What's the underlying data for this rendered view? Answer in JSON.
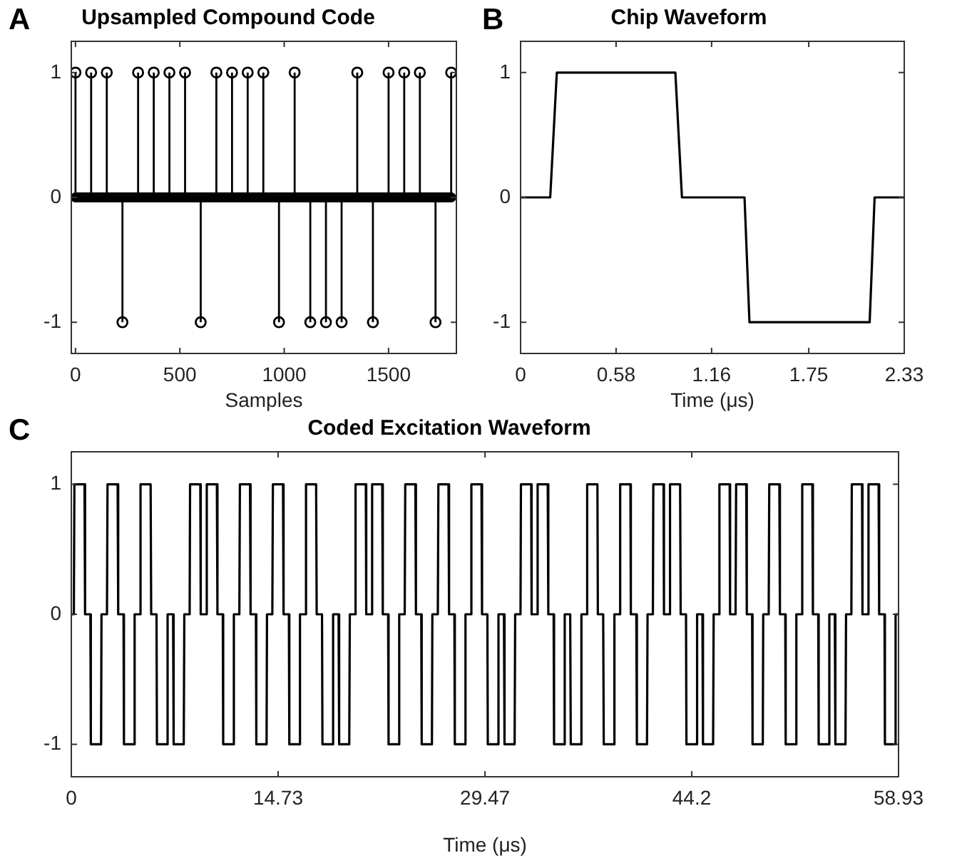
{
  "chart_data": [
    {
      "type": "lollipop",
      "title": "Upsampled Compound Code",
      "xlabel": "Samples",
      "annotations": [
        "A"
      ],
      "xlim": [
        -20,
        1825
      ],
      "ylim": [
        -1.25,
        1.25
      ],
      "xticks": [
        0,
        500,
        1000,
        1500
      ],
      "yticks": [
        -1,
        0,
        1
      ],
      "series": [
        {
          "type": "lollipop",
          "marker": "circle",
          "color": "#000000",
          "x": [
            0,
            75,
            150,
            225,
            300,
            375,
            450,
            525,
            600,
            675,
            750,
            825,
            900,
            975,
            1050,
            1125,
            1200,
            1275,
            1350,
            1425,
            1500,
            1575,
            1650,
            1725,
            1800
          ],
          "values": [
            1,
            1,
            1,
            -1,
            1,
            1,
            1,
            1,
            -1,
            1,
            1,
            1,
            1,
            -1,
            1,
            -1,
            -1,
            -1,
            1,
            -1,
            1,
            1,
            1,
            -1,
            1
          ]
        },
        {
          "type": "line",
          "color": "#000000",
          "x": [
            0,
            1800
          ],
          "values": [
            0,
            0
          ]
        }
      ]
    },
    {
      "type": "line",
      "title": "Chip Waveform",
      "xlabel": "Time (μs)",
      "annotations": [
        "B"
      ],
      "xlim": [
        0,
        2.33
      ],
      "ylim": [
        -1.25,
        1.25
      ],
      "xticks": [
        0,
        0.58,
        1.16,
        1.75,
        2.33
      ],
      "yticks": [
        -1,
        0,
        1
      ],
      "series": [
        {
          "color": "#000000",
          "x": [
            0,
            0.18,
            0.22,
            0.94,
            0.98,
            1.36,
            1.39,
            2.12,
            2.15,
            2.33
          ],
          "values": [
            0,
            0,
            1,
            1,
            0,
            0,
            -1,
            -1,
            0,
            0
          ]
        }
      ]
    },
    {
      "type": "line",
      "title": "Coded Excitation Waveform",
      "xlabel": "Time (μs)",
      "annotations": [
        "C"
      ],
      "xlim": [
        0,
        58.93
      ],
      "ylim": [
        -1.25,
        1.25
      ],
      "xticks": [
        0,
        14.73,
        29.47,
        44.2,
        58.93
      ],
      "yticks": [
        -1,
        0,
        1
      ],
      "series": [
        {
          "color": "#000000",
          "x": [
            0,
            0.18,
            0.22,
            0.94,
            0.98,
            1.36,
            1.39,
            2.12,
            2.15,
            2.54,
            2.58,
            3.3,
            3.34,
            3.72,
            3.75,
            4.48,
            4.51,
            4.89,
            4.93,
            5.65,
            5.69,
            6.07,
            6.1,
            6.83,
            6.86,
            7.25,
            7.29,
            8.01,
            8.05,
            8.43,
            8.46,
            9.19,
            9.22,
            9.61,
            9.65,
            10.37,
            10.41,
            10.79,
            10.82,
            11.55,
            11.58,
            11.97,
            12.01,
            12.73,
            12.77,
            13.15,
            13.18,
            13.91,
            13.94,
            14.32,
            14.36,
            15.08,
            15.12,
            15.5,
            15.53,
            16.26,
            16.29,
            16.68,
            16.72,
            17.44,
            17.48,
            17.86,
            17.89,
            18.62,
            18.65,
            19.04,
            19.08,
            19.8,
            19.84,
            20.22,
            20.25,
            20.98,
            21.01,
            21.39,
            21.43,
            22.15,
            22.19,
            22.57,
            22.6,
            23.33,
            23.36,
            23.75,
            23.79,
            24.51,
            24.55,
            24.93,
            24.96,
            25.69,
            25.72,
            26.11,
            26.15,
            26.87,
            26.91,
            27.29,
            27.32,
            28.05,
            28.08,
            28.46,
            28.5,
            29.22,
            29.26,
            29.64,
            29.67,
            30.4,
            30.43,
            30.82,
            30.86,
            31.58,
            31.62,
            32.0,
            32.03,
            32.76,
            32.79,
            33.18,
            33.22,
            33.94,
            33.98,
            34.36,
            34.39,
            35.12,
            35.15,
            35.54,
            35.58,
            36.3,
            36.34,
            36.72,
            36.75,
            37.48,
            37.51,
            37.89,
            37.93,
            38.65,
            38.69,
            39.07,
            39.1,
            39.83,
            39.86,
            40.25,
            40.29,
            41.01,
            41.05,
            41.43,
            41.46,
            42.19,
            42.22,
            42.61,
            42.65,
            43.37,
            43.41,
            43.79,
            43.82,
            44.55,
            44.58,
            44.96,
            45.0,
            45.72,
            45.76,
            46.14,
            46.17,
            46.9,
            46.93,
            47.32,
            47.36,
            48.08,
            48.12,
            48.5,
            48.53,
            49.26,
            49.29,
            49.68,
            49.72,
            50.44,
            50.48,
            50.86,
            50.89,
            51.62,
            51.65,
            52.03,
            52.07,
            52.79,
            52.83,
            53.21,
            53.24,
            53.97,
            54.0,
            54.39,
            54.43,
            55.15,
            55.19,
            55.57,
            55.6,
            56.33,
            56.36,
            56.75,
            56.79,
            57.51,
            57.55,
            57.93,
            57.96,
            58.69,
            58.72,
            58.93
          ],
          "values": [
            0,
            0,
            1,
            1,
            0,
            0,
            -1,
            -1,
            0,
            0,
            1,
            1,
            0,
            0,
            -1,
            -1,
            0,
            0,
            1,
            1,
            0,
            0,
            -1,
            -1,
            0,
            0,
            -1,
            -1,
            0,
            0,
            1,
            1,
            0,
            0,
            1,
            1,
            0,
            0,
            -1,
            -1,
            0,
            0,
            1,
            1,
            0,
            0,
            -1,
            -1,
            0,
            0,
            1,
            1,
            0,
            0,
            -1,
            -1,
            0,
            0,
            1,
            1,
            0,
            0,
            -1,
            -1,
            0,
            0,
            -1,
            -1,
            0,
            0,
            1,
            1,
            0,
            0,
            1,
            1,
            0,
            0,
            -1,
            -1,
            0,
            0,
            1,
            1,
            0,
            0,
            -1,
            -1,
            0,
            0,
            1,
            1,
            0,
            0,
            -1,
            -1,
            0,
            0,
            1,
            1,
            0,
            0,
            -1,
            -1,
            0,
            0,
            -1,
            -1,
            0,
            0,
            1,
            1,
            0,
            0,
            1,
            1,
            0,
            0,
            -1,
            -1,
            0,
            0,
            -1,
            -1,
            0,
            0,
            1,
            1,
            0,
            0,
            -1,
            -1,
            0,
            0,
            1,
            1,
            0,
            0,
            -1,
            -1,
            0,
            0,
            1,
            1,
            0,
            0,
            1,
            1,
            0,
            0,
            -1,
            -1,
            0,
            0,
            -1,
            -1,
            0,
            0,
            1,
            1,
            0,
            0,
            1,
            1,
            0,
            0,
            -1,
            -1,
            0,
            0,
            1,
            1,
            0,
            0,
            -1,
            -1,
            0,
            0,
            1,
            1,
            0,
            0,
            -1,
            -1,
            0,
            0,
            -1,
            -1,
            0,
            0,
            1,
            1,
            0,
            0,
            1,
            1,
            0,
            0,
            -1,
            -1,
            0,
            0
          ]
        }
      ]
    }
  ]
}
